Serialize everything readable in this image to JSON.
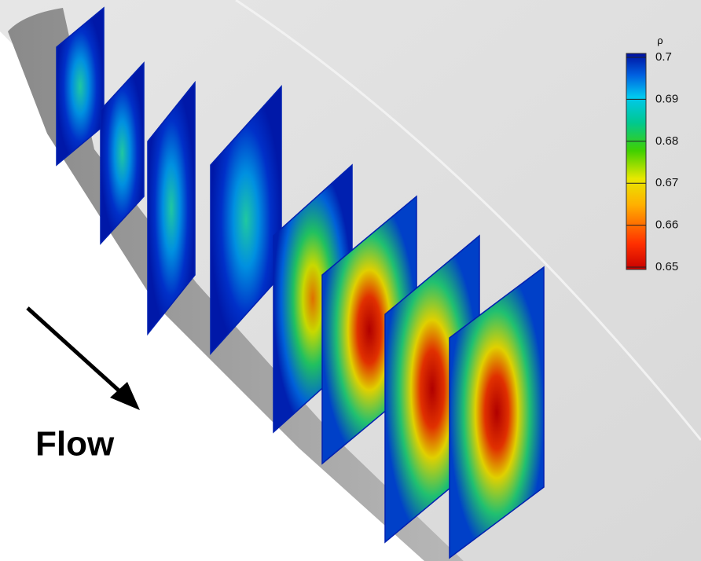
{
  "colorbar": {
    "label": "ρ",
    "ticks": [
      0.7,
      0.69,
      0.68,
      0.67,
      0.66,
      0.65
    ]
  },
  "annotation": "Flow"
}
